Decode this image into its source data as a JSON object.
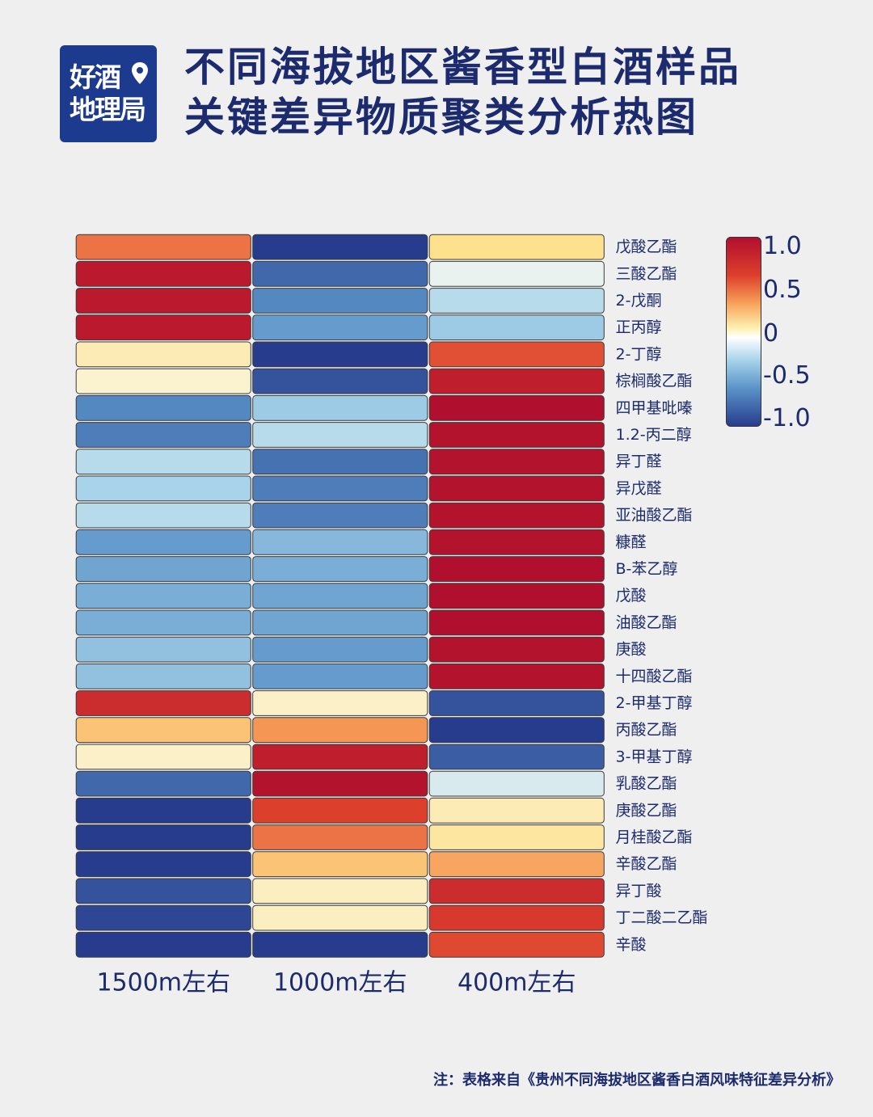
{
  "logo": {
    "line1": "好酒",
    "line2": "地理局"
  },
  "title": {
    "line1": "不同海拔地区酱香型白酒样品",
    "line2": "关键差异物质聚类分析热图"
  },
  "footnote": "注：表格来自《贵州不同海拔地区酱香白酒风味特征差异分析》",
  "colors": {
    "background": "#efefef",
    "title": "#1c2a6e",
    "logo_bg": "#1c3a8e",
    "scale_high": "#b10f2e",
    "scale_mid": "#ffffff",
    "scale_low": "#283c8e"
  },
  "chart_data": {
    "type": "heatmap",
    "x": [
      "1500m左右",
      "1000m左右",
      "400m左右"
    ],
    "y": [
      "戊酸乙酯",
      "三酸乙酯",
      "2-戊酮",
      "正丙醇",
      "2-丁醇",
      "棕榈酸乙酯",
      "四甲基吡嗪",
      "1.2-丙二醇",
      "异丁醛",
      "异戊醛",
      "亚油酸乙酯",
      "糠醛",
      "B-苯乙醇",
      "戊酸",
      "油酸乙酯",
      "庚酸",
      "十四酸乙酯",
      "2-甲基丁醇",
      "丙酸乙酯",
      "3-甲基丁醇",
      "乳酸乙酯",
      "庚酸乙酯",
      "月桂酸乙酯",
      "辛酸乙酯",
      "异丁酸",
      "丁二酸二乙酯",
      "辛酸"
    ],
    "values": [
      [
        0.6,
        -1.0,
        0.25
      ],
      [
        0.95,
        -0.8,
        -0.05
      ],
      [
        0.95,
        -0.65,
        -0.2
      ],
      [
        0.95,
        -0.55,
        -0.3
      ],
      [
        0.15,
        -1.0,
        0.7
      ],
      [
        0.08,
        -0.9,
        0.92
      ],
      [
        -0.65,
        -0.3,
        1.0
      ],
      [
        -0.7,
        -0.2,
        0.98
      ],
      [
        -0.2,
        -0.75,
        0.98
      ],
      [
        -0.25,
        -0.7,
        0.98
      ],
      [
        -0.2,
        -0.7,
        0.98
      ],
      [
        -0.55,
        -0.4,
        0.98
      ],
      [
        -0.5,
        -0.45,
        1.0
      ],
      [
        -0.45,
        -0.5,
        1.0
      ],
      [
        -0.45,
        -0.5,
        1.0
      ],
      [
        -0.35,
        -0.55,
        0.98
      ],
      [
        -0.35,
        -0.55,
        0.98
      ],
      [
        0.85,
        0.1,
        -0.9
      ],
      [
        0.35,
        0.5,
        -1.0
      ],
      [
        0.1,
        0.92,
        -0.85
      ],
      [
        -0.8,
        0.98,
        -0.1
      ],
      [
        -1.0,
        0.75,
        0.15
      ],
      [
        -1.0,
        0.6,
        0.2
      ],
      [
        -1.0,
        0.35,
        0.45
      ],
      [
        -0.9,
        0.12,
        0.85
      ],
      [
        -0.95,
        0.12,
        0.78
      ],
      [
        -1.0,
        -1.0,
        0.72
      ]
    ],
    "colorbar": {
      "range": [
        -1.0,
        1.0
      ],
      "tick_labels": [
        "1.0",
        "0.5",
        "0",
        "-0.5",
        "-1.0"
      ]
    }
  }
}
